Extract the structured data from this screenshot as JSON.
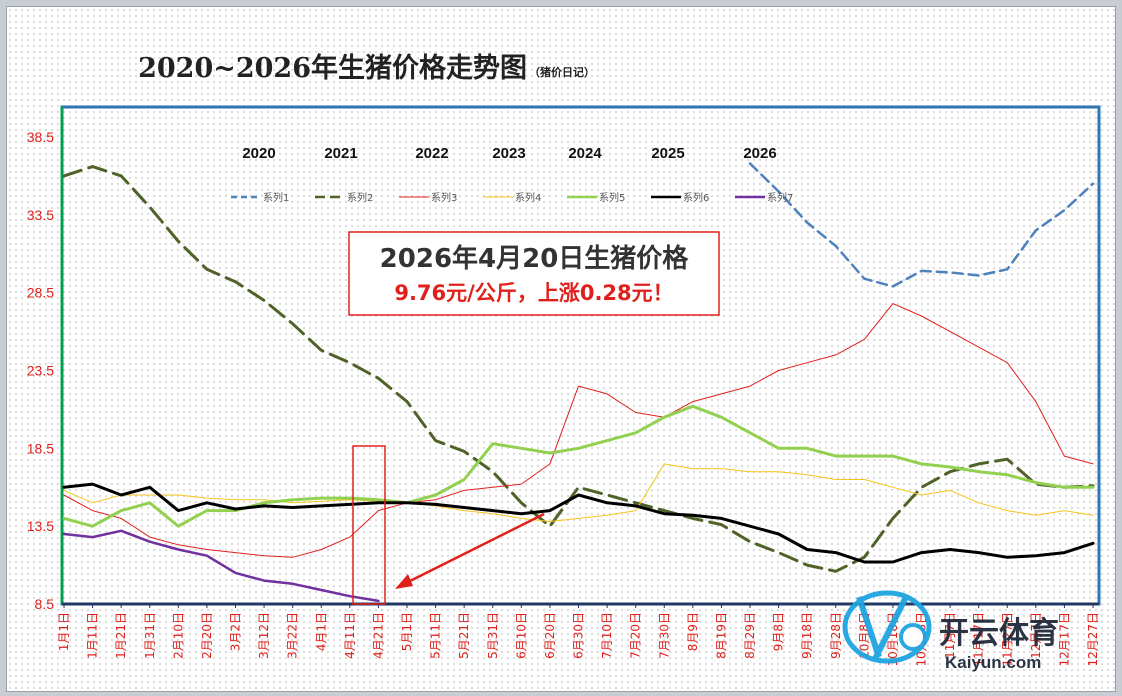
{
  "chart_data": {
    "type": "line",
    "title": "2020~2026年生猪价格走势图",
    "subtitle": "（猪价日记）",
    "ylim": [
      8.5,
      38.5
    ],
    "yticks": [
      8.5,
      13.5,
      18.5,
      23.5,
      28.5,
      33.5,
      38.5
    ],
    "grid": false,
    "legend_position": "top",
    "year_labels": [
      "2020",
      "2021",
      "2022",
      "2023",
      "2024",
      "2025",
      "2026"
    ],
    "categories": [
      "1月1日",
      "1月11日",
      "1月21日",
      "1月31日",
      "2月10日",
      "2月20日",
      "3月2日",
      "3月12日",
      "3月22日",
      "4月1日",
      "4月11日",
      "4月21日",
      "5月1日",
      "5月11日",
      "5月21日",
      "5月31日",
      "6月10日",
      "6月20日",
      "6月30日",
      "7月10日",
      "7月20日",
      "7月30日",
      "8月9日",
      "8月19日",
      "8月29日",
      "9月8日",
      "9月18日",
      "9月28日",
      "10月8日",
      "10月18日",
      "10月28日",
      "11月7日",
      "11月17日",
      "11月27日",
      "12月7日",
      "12月17日",
      "12月27日"
    ],
    "series": [
      {
        "name": "系列1",
        "color": "#4f81bd",
        "dash": "dashed",
        "width": 2.5,
        "values": [
          null,
          null,
          null,
          null,
          null,
          null,
          null,
          null,
          null,
          null,
          null,
          null,
          null,
          null,
          null,
          null,
          null,
          null,
          null,
          null,
          null,
          null,
          null,
          null,
          36.8,
          35.0,
          33.0,
          31.5,
          29.4,
          28.9,
          29.9,
          29.8,
          29.6,
          30.0,
          32.5,
          33.8,
          35.5
        ]
      },
      {
        "name": "系列2",
        "color": "#4f6228",
        "dash": "longdash",
        "width": 3,
        "values": [
          36.0,
          36.6,
          36.0,
          34.0,
          31.8,
          30.0,
          29.2,
          28.0,
          26.5,
          24.8,
          24.0,
          23.0,
          21.5,
          19.0,
          18.3,
          17.0,
          15.0,
          13.5,
          16.0,
          15.5,
          15.0,
          14.5,
          14.0,
          13.6,
          12.5,
          11.8,
          11.0,
          10.6,
          11.5,
          14.0,
          16.0,
          17.0,
          17.5,
          17.8,
          16.2,
          16.0,
          16.1
        ]
      },
      {
        "name": "系列3",
        "color": "#e0201b",
        "dash": "solid",
        "width": 1,
        "values": [
          15.5,
          14.5,
          14.0,
          12.8,
          12.3,
          12.0,
          11.8,
          11.6,
          11.5,
          12.0,
          12.8,
          14.5,
          15.0,
          15.2,
          15.8,
          16.0,
          16.2,
          17.5,
          22.5,
          22.0,
          20.8,
          20.5,
          21.5,
          22.0,
          22.5,
          23.5,
          24.0,
          24.5,
          25.5,
          27.8,
          27.0,
          26.0,
          25.0,
          24.0,
          21.5,
          18.0,
          17.5
        ]
      },
      {
        "name": "系列4",
        "color": "#f5c518",
        "dash": "solid",
        "width": 1,
        "values": [
          15.8,
          15.0,
          15.5,
          15.5,
          15.5,
          15.3,
          15.2,
          15.2,
          15.0,
          15.1,
          15.2,
          15.1,
          15.0,
          14.8,
          14.5,
          14.3,
          14.0,
          13.8,
          14.0,
          14.2,
          14.5,
          17.5,
          17.2,
          17.2,
          17.0,
          17.0,
          16.8,
          16.5,
          16.5,
          16.0,
          15.5,
          15.8,
          15.0,
          14.5,
          14.2,
          14.5,
          14.2
        ]
      },
      {
        "name": "系列5",
        "color": "#92d050",
        "dash": "solid",
        "width": 3,
        "values": [
          14.0,
          13.5,
          14.5,
          15.0,
          13.5,
          14.5,
          14.5,
          15.0,
          15.2,
          15.3,
          15.3,
          15.2,
          15.0,
          15.5,
          16.5,
          18.8,
          18.5,
          18.2,
          18.5,
          19.0,
          19.5,
          20.5,
          21.2,
          20.5,
          19.5,
          18.5,
          18.5,
          18.0,
          18.0,
          18.0,
          17.5,
          17.3,
          17.0,
          16.8,
          16.3,
          16.0,
          16.0
        ]
      },
      {
        "name": "系列6",
        "color": "#000000",
        "dash": "solid",
        "width": 3,
        "values": [
          16.0,
          16.2,
          15.5,
          16.0,
          14.5,
          15.0,
          14.6,
          14.8,
          14.7,
          14.8,
          14.9,
          15.0,
          15.0,
          14.9,
          14.7,
          14.5,
          14.3,
          14.5,
          15.5,
          15.0,
          14.8,
          14.3,
          14.2,
          14.0,
          13.5,
          13.0,
          12.0,
          11.8,
          11.2,
          11.2,
          11.8,
          12.0,
          11.8,
          11.5,
          11.6,
          11.8,
          12.4
        ]
      },
      {
        "name": "系列7",
        "color": "#7030a0",
        "dash": "solid",
        "width": 2.5,
        "values": [
          13.0,
          12.8,
          13.2,
          12.5,
          12.0,
          11.6,
          10.5,
          10.0,
          9.8,
          9.4,
          9.0,
          8.7,
          null,
          null,
          null,
          null,
          null,
          null,
          null,
          null,
          null,
          null,
          null,
          null,
          null,
          null,
          null,
          null,
          null,
          null,
          null,
          null,
          null,
          null,
          null,
          null,
          null
        ]
      }
    ]
  },
  "annotation": {
    "title": "2026年4月20日生猪价格",
    "subtitle": "9.76元/公斤，上涨0.28元！"
  },
  "watermark": {
    "text": "开云体育",
    "sub": "Kaiyun.com"
  }
}
